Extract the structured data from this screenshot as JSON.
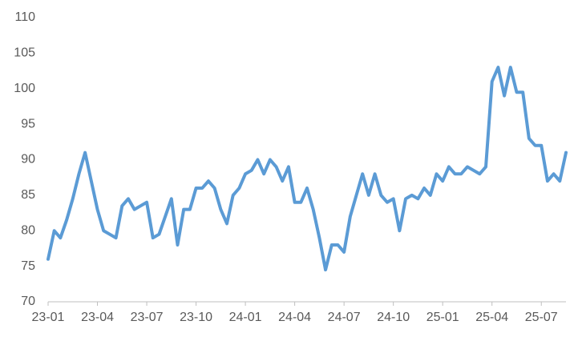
{
  "chart_data": {
    "type": "line",
    "categories": [
      "23-01",
      null,
      null,
      null,
      null,
      null,
      null,
      null,
      "23-04",
      null,
      null,
      null,
      null,
      null,
      null,
      null,
      "23-07",
      null,
      null,
      null,
      null,
      null,
      null,
      null,
      "23-10",
      null,
      null,
      null,
      null,
      null,
      null,
      null,
      "24-01",
      null,
      null,
      null,
      null,
      null,
      null,
      null,
      "24-04",
      null,
      null,
      null,
      null,
      null,
      null,
      null,
      "24-07",
      null,
      null,
      null,
      null,
      null,
      null,
      null,
      "24-10",
      null,
      null,
      null,
      null,
      null,
      null,
      null,
      "25-01",
      null,
      null,
      null,
      null,
      null,
      null,
      null,
      "25-04",
      null,
      null,
      null,
      null,
      null,
      null,
      null,
      "25-07",
      null,
      null,
      null,
      null
    ],
    "values": [
      76,
      80,
      79,
      81.5,
      84.5,
      88,
      91,
      87,
      83,
      80,
      79.5,
      79,
      83.5,
      84.5,
      83,
      83.5,
      84,
      79,
      79.5,
      82,
      84.5,
      78,
      83,
      83,
      86,
      86,
      87,
      86,
      83,
      81,
      85,
      86,
      88,
      88.5,
      90,
      88,
      90,
      89,
      87,
      89,
      84,
      84,
      86,
      83,
      79,
      74.5,
      78,
      78,
      77,
      82,
      85,
      88,
      85,
      88,
      85,
      84,
      84.5,
      80,
      84.5,
      85,
      84.5,
      86,
      85,
      88,
      87,
      89,
      88,
      88,
      89,
      88.5,
      88,
      89,
      101,
      103,
      99,
      103,
      99.5,
      99.5,
      93,
      92,
      92,
      87,
      88,
      87,
      91
    ],
    "color": "#5b9bd5",
    "ylim": [
      70,
      110
    ],
    "yticks": [
      70,
      75,
      80,
      85,
      90,
      95,
      100,
      105,
      110
    ],
    "grid": false
  }
}
